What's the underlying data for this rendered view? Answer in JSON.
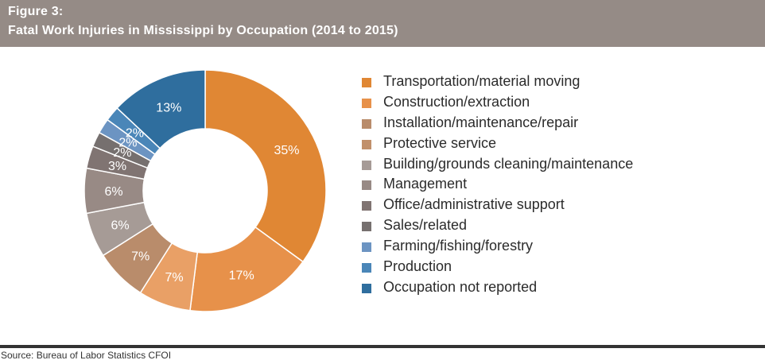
{
  "header": {
    "figure_label": "Figure 3:",
    "title": "Fatal Work Injuries in Mississippi by Occupation (2014 to 2015)"
  },
  "chart_data": {
    "type": "pie",
    "donut": true,
    "title": "Fatal Work Injuries in Mississippi by Occupation (2014 to 2015)",
    "legend_position": "right",
    "slices": [
      {
        "label": "Transportation/material moving",
        "value": 35,
        "color": "#e08734"
      },
      {
        "label": "Construction/extraction",
        "value": 17,
        "color": "#e7914a"
      },
      {
        "label": "Installation/maintenance/repair",
        "value": 7,
        "color": "#e9a066"
      },
      {
        "label": "Protective service",
        "value": 7,
        "color": "#b98c6b"
      },
      {
        "label": "Building/grounds cleaning/maintenance",
        "value": 6,
        "color": "#a69b96"
      },
      {
        "label": "Management",
        "value": 6,
        "color": "#988a85"
      },
      {
        "label": "Office/administrative support",
        "value": 3,
        "color": "#807472"
      },
      {
        "label": "Sales/related",
        "value": 2,
        "color": "#76706f"
      },
      {
        "label": "Farming/fishing/forestry",
        "value": 2,
        "color": "#6c94c2"
      },
      {
        "label": "Production",
        "value": 2,
        "color": "#4a86b8"
      },
      {
        "label": "Occupation not reported",
        "value": 13,
        "color": "#2f6e9e"
      }
    ],
    "data_labels": [
      "35%",
      "17%",
      "7%",
      "7%",
      "6%",
      "6%",
      "3%",
      "2%",
      "2%",
      "2%",
      "13%"
    ],
    "legend_colors": [
      "#e08734",
      "#e7914a",
      "#b98c6b",
      "#c1906b",
      "#a69b96",
      "#988a85",
      "#807472",
      "#76706f",
      "#6c94c2",
      "#4a86b8",
      "#2f6e9e"
    ]
  },
  "source": "Source: Bureau of Labor Statistics CFOI"
}
